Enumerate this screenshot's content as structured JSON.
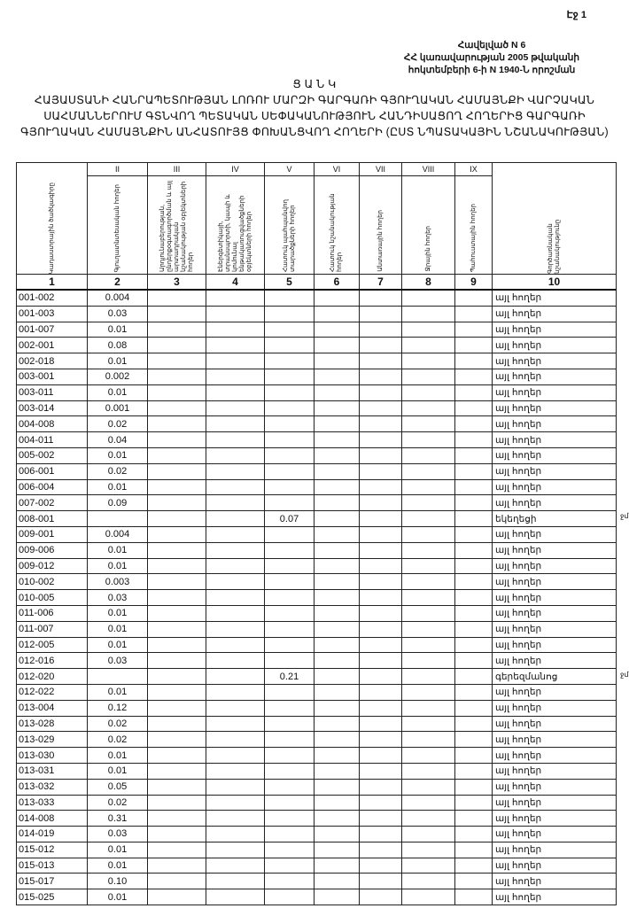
{
  "page_label": "Էջ 1",
  "annex": {
    "line1": "Հավելված N 6",
    "line2": "ՀՀ կառավարության 2005 թվականի",
    "line3": "հոկտեմբերի 6-ի N 1940-Ն որոշման"
  },
  "title": {
    "heading": "Ց Ա Ն Կ",
    "text": "ՀԱՅԱՍՏԱՆԻ ՀԱՆՐԱՊԵՏՈՒԹՅԱՆ ԼՈՌՈՒ ՄԱՐԶԻ ԳԱՐԳԱՌԻ ԳՅՈՒՂԱԿԱՆ ՀԱՄԱՅՆՔԻ ՎԱՐՉԱԿԱՆ ՍԱՀՄԱՆՆԵՐՈՒՄ ԳՏՆՎՈՂ ՊԵՏԱԿԱՆ ՍԵՓԱԿԱՆՈՒԹՅՈՒՆ ՀԱՆԴԻՍԱՑՈՂ ՀՈՂԵՐԻՑ ԳԱՐԳԱՌԻ ԳՅՈՒՂԱԿԱՆ ՀԱՄԱՅՆՔԻՆ ԱՆՀԱՏՈՒՅՑ ՓՈԽԱՆՑՎՈՂ ՀՈՂԵՐԻ (ԸՍՏ ՆՊԱՏԱԿԱՅԻՆ ՆՇԱՆԱԿՈՒԹՅԱՆ)"
  },
  "table": {
    "roman": [
      "",
      "II",
      "III",
      "IV",
      "V",
      "VI",
      "VII",
      "VIII",
      "IX",
      ""
    ],
    "headers": [
      "Կադաստրային ծածկագիրը",
      "Գյուղատնտեսական հողեր",
      "Արդյունաբերության, ընդերքօգտագործման և այլ արտադրական նշանակության օբյեկտների հողեր",
      "Էներգետիկայի, տրանսպորտի, կապի և կոմունալ ենթակառուցվածքների օբյեկտների հողեր",
      "Հատուկ պահպանվող տարածքների հողեր",
      "Հատուկ նշանակության հողեր",
      "Անտառային հողեր",
      "Ջրային հողեր",
      "Պահուստային հողեր",
      "Գործառնական նշանակությունը"
    ],
    "numbers": [
      "1",
      "2",
      "3",
      "4",
      "5",
      "6",
      "7",
      "8",
      "9",
      "10"
    ],
    "rows": [
      {
        "code": "001-002",
        "agri": "0.004",
        "c5": "",
        "type": "այլ հողեր"
      },
      {
        "code": "001-003",
        "agri": "0.03",
        "c5": "",
        "type": "այլ հողեր"
      },
      {
        "code": "001-007",
        "agri": "0.01",
        "c5": "",
        "type": "այլ հողեր"
      },
      {
        "code": "002-001",
        "agri": "0.08",
        "c5": "",
        "type": "այլ հողեր"
      },
      {
        "code": "002-018",
        "agri": "0.01",
        "c5": "",
        "type": "այլ հողեր"
      },
      {
        "code": "003-001",
        "agri": "0.002",
        "c5": "",
        "type": "այլ հողեր"
      },
      {
        "code": "003-011",
        "agri": "0.01",
        "c5": "",
        "type": "այլ հողեր"
      },
      {
        "code": "003-014",
        "agri": "0.001",
        "c5": "",
        "type": "այլ հողեր"
      },
      {
        "code": "004-008",
        "agri": "0.02",
        "c5": "",
        "type": "այլ հողեր"
      },
      {
        "code": "004-011",
        "agri": "0.04",
        "c5": "",
        "type": "այլ հողեր"
      },
      {
        "code": "005-002",
        "agri": "0.01",
        "c5": "",
        "type": "այլ հողեր"
      },
      {
        "code": "006-001",
        "agri": "0.02",
        "c5": "",
        "type": "այլ հողեր"
      },
      {
        "code": "006-004",
        "agri": "0.01",
        "c5": "",
        "type": "այլ հողեր"
      },
      {
        "code": "007-002",
        "agri": "0.09",
        "c5": "",
        "type": "այլ հողեր"
      },
      {
        "code": "008-001",
        "agri": "",
        "c5": "0.07",
        "type": "եկեղեցի",
        "mark": "ջմ"
      },
      {
        "code": "009-001",
        "agri": "0.004",
        "c5": "",
        "type": "այլ հողեր"
      },
      {
        "code": "009-006",
        "agri": "0.01",
        "c5": "",
        "type": "այլ հողեր"
      },
      {
        "code": "009-012",
        "agri": "0.01",
        "c5": "",
        "type": "այլ հողեր"
      },
      {
        "code": "010-002",
        "agri": "0.003",
        "c5": "",
        "type": "այլ հողեր"
      },
      {
        "code": "010-005",
        "agri": "0.03",
        "c5": "",
        "type": "այլ հողեր"
      },
      {
        "code": "011-006",
        "agri": "0.01",
        "c5": "",
        "type": "այլ հողեր"
      },
      {
        "code": "011-007",
        "agri": "0.01",
        "c5": "",
        "type": "այլ հողեր"
      },
      {
        "code": "012-005",
        "agri": "0.01",
        "c5": "",
        "type": "այլ հողեր"
      },
      {
        "code": "012-016",
        "agri": "0.03",
        "c5": "",
        "type": "այլ հողեր"
      },
      {
        "code": "012-020",
        "agri": "",
        "c5": "0.21",
        "type": "գերեզմանոց",
        "mark": "ջմ"
      },
      {
        "code": "012-022",
        "agri": "0.01",
        "c5": "",
        "type": "այլ հողեր"
      },
      {
        "code": "013-004",
        "agri": "0.12",
        "c5": "",
        "type": "այլ հողեր"
      },
      {
        "code": "013-028",
        "agri": "0.02",
        "c5": "",
        "type": "այլ հողեր"
      },
      {
        "code": "013-029",
        "agri": "0.02",
        "c5": "",
        "type": "այլ հողեր"
      },
      {
        "code": "013-030",
        "agri": "0.01",
        "c5": "",
        "type": "այլ հողեր"
      },
      {
        "code": "013-031",
        "agri": "0.01",
        "c5": "",
        "type": "այլ հողեր"
      },
      {
        "code": "013-032",
        "agri": "0.05",
        "c5": "",
        "type": "այլ հողեր"
      },
      {
        "code": "013-033",
        "agri": "0.02",
        "c5": "",
        "type": "այլ հողեր"
      },
      {
        "code": "014-008",
        "agri": "0.31",
        "c5": "",
        "type": "այլ հողեր"
      },
      {
        "code": "014-019",
        "agri": "0.03",
        "c5": "",
        "type": "այլ հողեր"
      },
      {
        "code": "015-012",
        "agri": "0.01",
        "c5": "",
        "type": "այլ հողեր"
      },
      {
        "code": "015-013",
        "agri": "0.01",
        "c5": "",
        "type": "այլ հողեր"
      },
      {
        "code": "015-017",
        "agri": "0.10",
        "c5": "",
        "type": "այլ հողեր"
      },
      {
        "code": "015-025",
        "agri": "0.01",
        "c5": "",
        "type": "այլ հողեր"
      }
    ]
  }
}
